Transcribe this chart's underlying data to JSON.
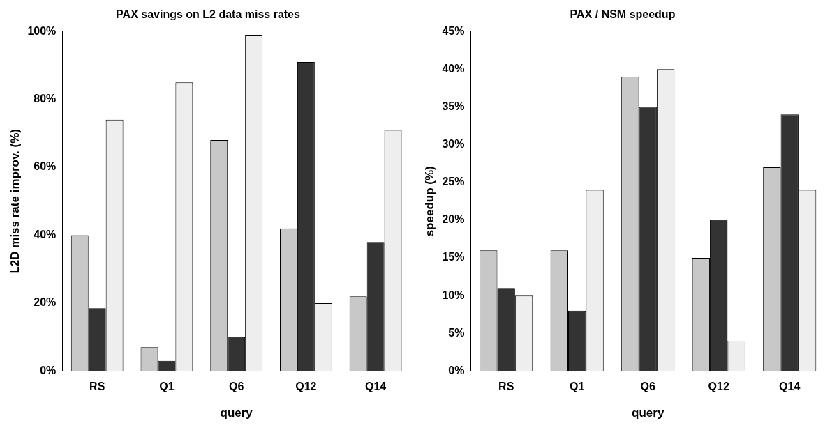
{
  "chart_data": [
    {
      "type": "bar",
      "title": "PAX savings on L2 data miss rates",
      "xlabel": "query",
      "ylabel": "L2D miss rate improv. (%)",
      "categories": [
        "RS",
        "Q1",
        "Q6",
        "Q12",
        "Q14"
      ],
      "series": [
        {
          "color": "#c8c8c8",
          "values": [
            40,
            7,
            68,
            42,
            22
          ]
        },
        {
          "color": "#333333",
          "values": [
            18.5,
            3,
            10,
            91,
            38
          ]
        },
        {
          "color": "#eeeeee",
          "values": [
            74,
            85,
            99,
            20,
            71
          ]
        }
      ],
      "ylim": [
        0,
        100
      ],
      "yticks": [
        {
          "value": 0,
          "label": "0%"
        },
        {
          "value": 20,
          "label": "20%"
        },
        {
          "value": 40,
          "label": "40%"
        },
        {
          "value": 60,
          "label": "60%"
        },
        {
          "value": 80,
          "label": "80%"
        },
        {
          "value": 100,
          "label": "100%"
        }
      ],
      "grid": false
    },
    {
      "type": "bar",
      "title": "PAX / NSM speedup",
      "xlabel": "query",
      "ylabel": "speedup (%)",
      "categories": [
        "RS",
        "Q1",
        "Q6",
        "Q12",
        "Q14"
      ],
      "series": [
        {
          "color": "#c8c8c8",
          "values": [
            16,
            16,
            39,
            15,
            27
          ]
        },
        {
          "color": "#333333",
          "values": [
            11,
            8,
            35,
            20,
            34
          ]
        },
        {
          "color": "#eeeeee",
          "values": [
            10,
            24,
            40,
            4,
            24
          ]
        }
      ],
      "ylim": [
        0,
        45
      ],
      "yticks": [
        {
          "value": 0,
          "label": "0%"
        },
        {
          "value": 5,
          "label": "5%"
        },
        {
          "value": 10,
          "label": "10%"
        },
        {
          "value": 15,
          "label": "15%"
        },
        {
          "value": 20,
          "label": "20%"
        },
        {
          "value": 25,
          "label": "25%"
        },
        {
          "value": 30,
          "label": "30%"
        },
        {
          "value": 35,
          "label": "35%"
        },
        {
          "value": 40,
          "label": "40%"
        },
        {
          "value": 45,
          "label": "45%"
        }
      ],
      "grid": false
    }
  ]
}
